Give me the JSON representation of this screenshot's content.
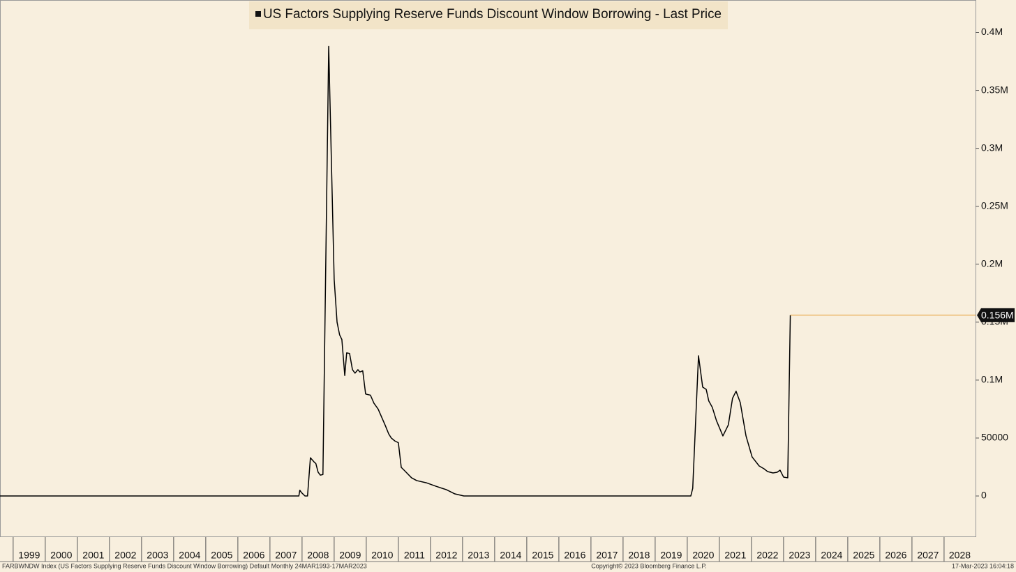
{
  "chart_data": {
    "type": "line",
    "series": [
      {
        "name": "US Factors Supplying Reserve Funds Discount Window Borrowing - Last Price",
        "color": "#000000",
        "values": [
          0,
          0,
          0,
          5000,
          3000,
          0,
          0,
          33000,
          29500,
          28000,
          20500,
          18000,
          18500,
          388000,
          187000,
          150000,
          139000,
          135000,
          104000,
          123500,
          123000,
          109000,
          106000,
          109000,
          107000,
          108000,
          88000,
          87000,
          80000,
          75000,
          68000,
          61000,
          53500,
          50000,
          47500,
          46000,
          24700,
          21700,
          15700,
          13300,
          11400,
          8400,
          5400,
          1800,
          0,
          0,
          6600,
          121000,
          94000,
          92000,
          82000,
          76500,
          65000,
          51800,
          61400,
          84300,
          90400,
          80700,
          51800,
          33700,
          25900,
          23500,
          21100,
          19900,
          20500,
          22300,
          16300,
          15700,
          156000
        ],
        "value_labels": [
          null,
          null,
          null,
          null,
          null,
          null,
          null,
          null,
          null,
          null,
          null,
          null,
          null,
          null,
          null,
          null,
          null,
          null,
          null,
          null,
          null,
          null,
          null,
          null,
          null,
          null,
          null,
          null,
          null,
          null,
          null,
          null,
          null,
          null,
          null,
          null,
          null,
          null,
          null,
          null,
          null,
          null,
          null,
          null,
          null,
          null,
          null,
          null,
          null,
          null,
          null,
          null,
          null,
          null,
          null,
          null,
          null,
          null,
          null,
          null,
          null,
          null,
          null,
          null,
          null,
          null,
          null,
          null,
          "0.156M"
        ]
      }
    ],
    "x": [
      1998.59,
      2007.61,
      2007.9,
      2007.93,
      2007.98,
      2008.09,
      2008.17,
      2008.26,
      2008.37,
      2008.43,
      2008.5,
      2008.57,
      2008.65,
      2008.83,
      2009.0,
      2009.09,
      2009.17,
      2009.24,
      2009.33,
      2009.39,
      2009.48,
      2009.57,
      2009.65,
      2009.74,
      2009.8,
      2009.89,
      2009.98,
      2010.13,
      2010.24,
      2010.37,
      2010.48,
      2010.59,
      2010.7,
      2010.78,
      2010.89,
      2011.0,
      2011.09,
      2011.2,
      2011.41,
      2011.57,
      2011.87,
      2012.17,
      2012.5,
      2012.76,
      2013.04,
      2020.11,
      2020.17,
      2020.35,
      2020.48,
      2020.59,
      2020.67,
      2020.78,
      2020.91,
      2021.11,
      2021.28,
      2021.41,
      2021.52,
      2021.65,
      2021.83,
      2022.02,
      2022.24,
      2022.39,
      2022.5,
      2022.67,
      2022.8,
      2022.89,
      2023.0,
      2023.13,
      2023.21
    ],
    "xlim": [
      1998.59,
      2028.98
    ],
    "xticks": [
      1999,
      2000,
      2001,
      2002,
      2003,
      2004,
      2005,
      2006,
      2007,
      2008,
      2009,
      2010,
      2011,
      2012,
      2013,
      2014,
      2015,
      2016,
      2017,
      2018,
      2019,
      2020,
      2021,
      2022,
      2023,
      2024,
      2025,
      2026,
      2027,
      2028
    ],
    "ylim": [
      -35500,
      428000
    ],
    "yticks": [
      0,
      50000,
      {
        "value": 100000,
        "label": "0.1M"
      },
      {
        "value": 150000,
        "label": "0.15M"
      },
      {
        "value": 200000,
        "label": "0.2M"
      },
      {
        "value": 250000,
        "label": "0.25M"
      },
      {
        "value": 300000,
        "label": "0.3M"
      },
      {
        "value": 350000,
        "label": "0.35M"
      },
      {
        "value": 400000,
        "label": "0.4M"
      }
    ],
    "last_price_line_color": "#e8a33c",
    "footer": {
      "left": "FARBWNDW Index (US Factors Supplying Reserve Funds Discount Window Borrowing) Default  Monthly 24MAR1993-17MAR2023",
      "center": "Copyright© 2023 Bloomberg Finance L.P.",
      "right": "17-Mar-2023 16:04:18"
    }
  }
}
